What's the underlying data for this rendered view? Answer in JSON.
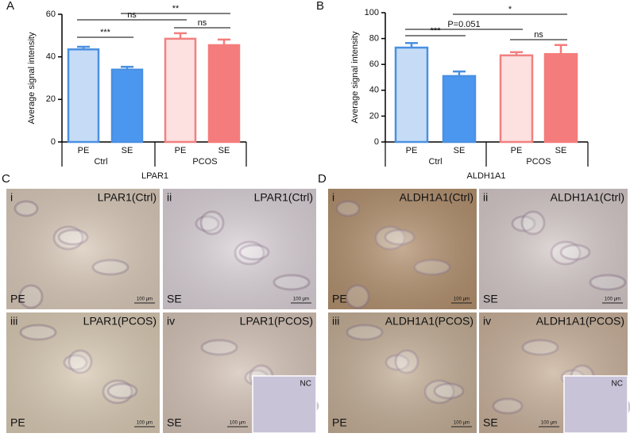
{
  "chart_data": [
    {
      "type": "bar",
      "label": "A",
      "ylabel": "Average signal intensity",
      "xlabel": "LPAR1",
      "categories": [
        "PE",
        "SE",
        "PE",
        "SE"
      ],
      "groups": [
        "Ctrl",
        "PCOS"
      ],
      "values": [
        43.5,
        34,
        48.5,
        45.5
      ],
      "errors": [
        1.2,
        1.3,
        2.6,
        2.6
      ],
      "colors": [
        "#4a90e2",
        "#4a90e2",
        "#f08080",
        "#f47c7c"
      ],
      "fill_colors": [
        "#c6dcf6",
        "#4b97f0",
        "#fde0e0",
        "#f47c7c"
      ],
      "ylim": [
        0,
        60
      ],
      "yticks": [
        0,
        20,
        40,
        60
      ],
      "annotations": [
        {
          "text": "***",
          "pair": [
            0,
            1
          ]
        },
        {
          "text": "ns",
          "pair": [
            0,
            2
          ]
        },
        {
          "text": "**",
          "pair": [
            1,
            3
          ]
        },
        {
          "text": "ns",
          "pair": [
            2,
            3
          ]
        }
      ]
    },
    {
      "type": "bar",
      "label": "B",
      "ylabel": "Average signal intensity",
      "xlabel": "ALDH1A1",
      "categories": [
        "PE",
        "SE",
        "PE",
        "SE"
      ],
      "groups": [
        "Ctrl",
        "PCOS"
      ],
      "values": [
        73,
        51,
        67,
        68
      ],
      "errors": [
        3.5,
        3.5,
        2.5,
        7
      ],
      "colors": [
        "#4a90e2",
        "#4a90e2",
        "#f08080",
        "#f47c7c"
      ],
      "fill_colors": [
        "#c6dcf6",
        "#4b97f0",
        "#fde0e0",
        "#f47c7c"
      ],
      "ylim": [
        0,
        100
      ],
      "yticks": [
        0,
        20,
        40,
        60,
        80,
        100
      ],
      "annotations": [
        {
          "text": "***",
          "pair": [
            0,
            1
          ]
        },
        {
          "text": "P=0.051",
          "pair": [
            0,
            2
          ]
        },
        {
          "text": "*",
          "pair": [
            1,
            3
          ]
        },
        {
          "text": "ns",
          "pair": [
            2,
            3
          ]
        }
      ]
    }
  ],
  "image_panels": [
    {
      "label": "C",
      "images": [
        {
          "numeral": "i",
          "title": "LPAR1(Ctrl)",
          "region": "PE",
          "scale": "100 μm",
          "color": "#d8c8b8"
        },
        {
          "numeral": "ii",
          "title": "LPAR1(Ctrl)",
          "region": "SE",
          "scale": "100 μm",
          "color": "#d9d0d6"
        },
        {
          "numeral": "iii",
          "title": "LPAR1(PCOS)",
          "region": "PE",
          "scale": "100 μm",
          "color": "#d8c9b3"
        },
        {
          "numeral": "iv",
          "title": "LPAR1(PCOS)",
          "region": "SE",
          "scale": "100 μm",
          "color": "#d3c2b6",
          "inset": "NC"
        }
      ]
    },
    {
      "label": "D",
      "images": [
        {
          "numeral": "i",
          "title": "ALDH1A1(Ctrl)",
          "region": "PE",
          "scale": "100 μm",
          "color": "#b2906e"
        },
        {
          "numeral": "ii",
          "title": "ALDH1A1(Ctrl)",
          "region": "SE",
          "scale": "100 μm",
          "color": "#d4c8c8"
        },
        {
          "numeral": "iii",
          "title": "ALDH1A1(PCOS)",
          "region": "PE",
          "scale": "100 μm",
          "color": "#c2ad95"
        },
        {
          "numeral": "iv",
          "title": "ALDH1A1(PCOS)",
          "region": "SE",
          "scale": "100 μm",
          "color": "#c8b09a",
          "inset": "NC"
        }
      ]
    }
  ]
}
